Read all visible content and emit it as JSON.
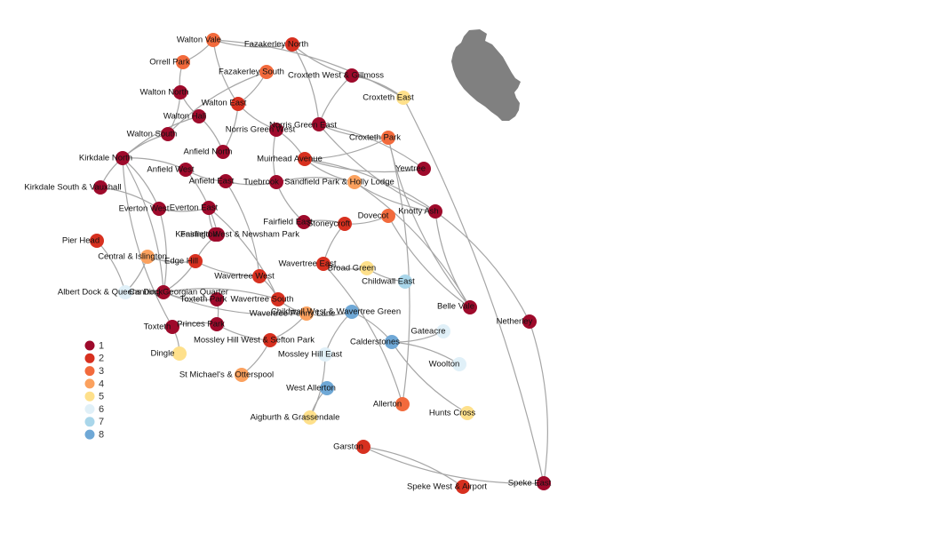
{
  "colors": {
    "1": "#9e0a2b",
    "2": "#d7301f",
    "3": "#f26a3c",
    "4": "#fba15e",
    "5": "#fee08b",
    "6": "#e0f0f8",
    "7": "#a9d6ea",
    "8": "#6fa8d6",
    "link": "#a6a6a6",
    "map": "#808080"
  },
  "legend": [
    {
      "label": "1",
      "class": 1
    },
    {
      "label": "2",
      "class": 2
    },
    {
      "label": "3",
      "class": 3
    },
    {
      "label": "4",
      "class": 4
    },
    {
      "label": "5",
      "class": 5
    },
    {
      "label": "6",
      "class": 6
    },
    {
      "label": "7",
      "class": 7
    },
    {
      "label": "8",
      "class": 8
    }
  ],
  "wards": [
    {
      "id": "walton-vale",
      "label": "Walton Vale",
      "class": 3
    },
    {
      "id": "fazakerley-north",
      "label": "Fazakerley North",
      "class": 2
    },
    {
      "id": "orrell-park",
      "label": "Orrell Park",
      "class": 3
    },
    {
      "id": "fazakerley-south",
      "label": "Fazakerley South",
      "class": 3
    },
    {
      "id": "croxteth-west",
      "label": "Croxteth West & Gillmoss",
      "class": 1
    },
    {
      "id": "walton-north",
      "label": "Walton North",
      "class": 1
    },
    {
      "id": "walton-east",
      "label": "Walton East",
      "class": 2
    },
    {
      "id": "croxteth-east",
      "label": "Croxteth East",
      "class": 5
    },
    {
      "id": "walton-hall",
      "label": "Walton Hall",
      "class": 1
    },
    {
      "id": "norris-green-east",
      "label": "Norris Green East",
      "class": 1
    },
    {
      "id": "norris-green-west",
      "label": "Norris Green West",
      "class": 1
    },
    {
      "id": "walton-south",
      "label": "Walton South",
      "class": 1
    },
    {
      "id": "croxteth-park",
      "label": "Croxteth Park",
      "class": 3
    },
    {
      "id": "anfield-north",
      "label": "Anfield North",
      "class": 1
    },
    {
      "id": "kirkdale-north",
      "label": "Kirkdale North",
      "class": 1
    },
    {
      "id": "muirhead-avenue",
      "label": "Muirhead Avenue",
      "class": 2
    },
    {
      "id": "yew-tree",
      "label": "Yewtree",
      "class": 1
    },
    {
      "id": "anfield-west",
      "label": "Anfield West",
      "class": 1
    },
    {
      "id": "anfield-east",
      "label": "Anfield East",
      "class": 1
    },
    {
      "id": "tuebrook",
      "label": "Tuebrook",
      "class": 1
    },
    {
      "id": "sandfield-park",
      "label": "Sandfield Park & Holly Lodge",
      "class": 4
    },
    {
      "id": "kirkdale-south",
      "label": "Kirkdale South & Vauxhall",
      "class": 1
    },
    {
      "id": "everton-west",
      "label": "Everton West",
      "class": 1
    },
    {
      "id": "everton-east",
      "label": "Everton East",
      "class": 1
    },
    {
      "id": "knotty-ash",
      "label": "Knotty Ash",
      "class": 1
    },
    {
      "id": "dovecot",
      "label": "Dovecot",
      "class": 3
    },
    {
      "id": "fairfield-east",
      "label": "Fairfield East",
      "class": 1
    },
    {
      "id": "stoneycroft",
      "label": "Stoneycroft",
      "class": 2
    },
    {
      "id": "kensington",
      "label": "Kensington",
      "class": 1
    },
    {
      "id": "fairfield-west",
      "label": "Fairfield West & Newsham Park",
      "class": 1
    },
    {
      "id": "pier-head",
      "label": "Pier Head",
      "class": 2
    },
    {
      "id": "central",
      "label": "Central & Islington",
      "class": 4
    },
    {
      "id": "edge-hill",
      "label": "Edge Hill",
      "class": 2
    },
    {
      "id": "wavertree-east",
      "label": "Wavertree East",
      "class": 2
    },
    {
      "id": "broad-green",
      "label": "Broad Green",
      "class": 5
    },
    {
      "id": "childwall-east",
      "label": "Childwall East",
      "class": 7
    },
    {
      "id": "wavertree-west",
      "label": "Wavertree West",
      "class": 2
    },
    {
      "id": "albert-dock",
      "label": "Albert Dock & Queens Dock",
      "class": 6
    },
    {
      "id": "canning",
      "label": "Canning Georgian Quarter",
      "class": 1
    },
    {
      "id": "toxteth-park",
      "label": "Toxteth Park",
      "class": 1
    },
    {
      "id": "wavertree-south",
      "label": "Wavertree South",
      "class": 2
    },
    {
      "id": "belle-vale",
      "label": "Belle Vale",
      "class": 1
    },
    {
      "id": "childwall-west",
      "label": "Childwall West & Wavertree Green",
      "class": 8
    },
    {
      "id": "wavertree-penny-lane",
      "label": "Wavertree Penny Lane",
      "class": 4
    },
    {
      "id": "netherley",
      "label": "Netherley",
      "class": 1
    },
    {
      "id": "princes-park",
      "label": "Princes Park",
      "class": 1
    },
    {
      "id": "toxteth",
      "label": "Toxteth",
      "class": 1
    },
    {
      "id": "gateacre",
      "label": "Gateacre",
      "class": 6
    },
    {
      "id": "mossley-hill-west",
      "label": "Mossley Hill West & Sefton Park",
      "class": 2
    },
    {
      "id": "calderstones",
      "label": "Calderstones",
      "class": 8
    },
    {
      "id": "dingle",
      "label": "Dingle",
      "class": 5
    },
    {
      "id": "mossley-hill-east",
      "label": "Mossley Hill East",
      "class": 6
    },
    {
      "id": "woolton",
      "label": "Woolton",
      "class": 6
    },
    {
      "id": "st-michaels",
      "label": "St Michael's & Otterspool",
      "class": 4
    },
    {
      "id": "west-allerton",
      "label": "West Allerton",
      "class": 8
    },
    {
      "id": "allerton",
      "label": "Allerton",
      "class": 3
    },
    {
      "id": "hunts-cross",
      "label": "Hunts Cross",
      "class": 5
    },
    {
      "id": "aigburth",
      "label": "Aigburth & Grassendale",
      "class": 5
    },
    {
      "id": "garston",
      "label": "Garston",
      "class": 2
    },
    {
      "id": "speke-east",
      "label": "Speke East",
      "class": 1
    },
    {
      "id": "speke-west",
      "label": "Speke West & Airport",
      "class": 2
    }
  ],
  "links": [
    [
      "walton-vale",
      "fazakerley-north"
    ],
    [
      "walton-vale",
      "orrell-park"
    ],
    [
      "walton-vale",
      "walton-east"
    ],
    [
      "walton-vale",
      "croxteth-east"
    ],
    [
      "fazakerley-north",
      "croxteth-west"
    ],
    [
      "fazakerley-north",
      "norris-green-east"
    ],
    [
      "orrell-park",
      "walton-north"
    ],
    [
      "fazakerley-south",
      "walton-east"
    ],
    [
      "fazakerley-south",
      "walton-south"
    ],
    [
      "croxteth-west",
      "croxteth-east"
    ],
    [
      "croxteth-west",
      "norris-green-east"
    ],
    [
      "croxteth-east",
      "speke-east"
    ],
    [
      "walton-north",
      "walton-hall"
    ],
    [
      "walton-north",
      "walton-south"
    ],
    [
      "walton-hall",
      "kirkdale-north"
    ],
    [
      "walton-hall",
      "anfield-north"
    ],
    [
      "walton-east",
      "norris-green-west"
    ],
    [
      "walton-east",
      "anfield-north"
    ],
    [
      "norris-green-east",
      "croxteth-park"
    ],
    [
      "norris-green-east",
      "yew-tree"
    ],
    [
      "norris-green-east",
      "knotty-ash"
    ],
    [
      "norris-green-west",
      "muirhead-avenue"
    ],
    [
      "norris-green-west",
      "tuebrook"
    ],
    [
      "croxteth-park",
      "muirhead-avenue"
    ],
    [
      "croxteth-park",
      "belle-vale"
    ],
    [
      "croxteth-park",
      "allerton"
    ],
    [
      "walton-south",
      "kirkdale-north"
    ],
    [
      "kirkdale-north",
      "anfield-west"
    ],
    [
      "kirkdale-north",
      "kirkdale-south"
    ],
    [
      "kirkdale-north",
      "everton-west"
    ],
    [
      "kirkdale-north",
      "toxteth"
    ],
    [
      "kirkdale-north",
      "canning"
    ],
    [
      "anfield-west",
      "anfield-east"
    ],
    [
      "anfield-west",
      "fairfield-west"
    ],
    [
      "anfield-east",
      "tuebrook"
    ],
    [
      "anfield-east",
      "wavertree-west"
    ],
    [
      "muirhead-avenue",
      "yew-tree"
    ],
    [
      "muirhead-avenue",
      "knotty-ash"
    ],
    [
      "muirhead-avenue",
      "sandfield-park"
    ],
    [
      "tuebrook",
      "sandfield-park"
    ],
    [
      "tuebrook",
      "fairfield-east"
    ],
    [
      "sandfield-park",
      "belle-vale"
    ],
    [
      "sandfield-park",
      "knotty-ash"
    ],
    [
      "knotty-ash",
      "netherley"
    ],
    [
      "knotty-ash",
      "belle-vale"
    ],
    [
      "dovecot",
      "stoneycroft"
    ],
    [
      "dovecot",
      "belle-vale"
    ],
    [
      "kirkdale-south",
      "everton-west"
    ],
    [
      "everton-west",
      "everton-east"
    ],
    [
      "everton-west",
      "canning"
    ],
    [
      "kensington",
      "fairfield-west"
    ],
    [
      "kensington",
      "everton-east"
    ],
    [
      "fairfield-west",
      "edge-hill"
    ],
    [
      "fairfield-east",
      "stoneycroft"
    ],
    [
      "stoneycroft",
      "wavertree-east"
    ],
    [
      "pier-head",
      "albert-dock"
    ],
    [
      "central",
      "edge-hill"
    ],
    [
      "central",
      "albert-dock"
    ],
    [
      "edge-hill",
      "wavertree-west"
    ],
    [
      "edge-hill",
      "canning"
    ],
    [
      "wavertree-east",
      "broad-green"
    ],
    [
      "wavertree-east",
      "allerton"
    ],
    [
      "broad-green",
      "childwall-east"
    ],
    [
      "wavertree-west",
      "wavertree-south"
    ],
    [
      "canning",
      "toxteth-park"
    ],
    [
      "canning",
      "wavertree-south"
    ],
    [
      "canning",
      "wavertree-penny-lane"
    ],
    [
      "toxteth-park",
      "princes-park"
    ],
    [
      "princes-park",
      "toxteth"
    ],
    [
      "toxteth",
      "dingle"
    ],
    [
      "wavertree-south",
      "wavertree-penny-lane"
    ],
    [
      "childwall-west",
      "calderstones"
    ],
    [
      "childwall-west",
      "mossley-hill-east"
    ],
    [
      "childwall-west",
      "wavertree-penny-lane"
    ],
    [
      "calderstones",
      "gateacre"
    ],
    [
      "calderstones",
      "woolton"
    ],
    [
      "calderstones",
      "hunts-cross"
    ],
    [
      "mossley-hill-west",
      "st-michaels"
    ],
    [
      "mossley-hill-west",
      "wavertree-penny-lane"
    ],
    [
      "mossley-hill-east",
      "aigburth"
    ],
    [
      "west-allerton",
      "aigburth"
    ],
    [
      "garston",
      "speke-west"
    ],
    [
      "garston",
      "speke-east"
    ],
    [
      "netherley",
      "speke-east"
    ],
    [
      "princes-park",
      "mossley-hill-west"
    ],
    [
      "everton-east",
      "wavertree-south"
    ]
  ]
}
